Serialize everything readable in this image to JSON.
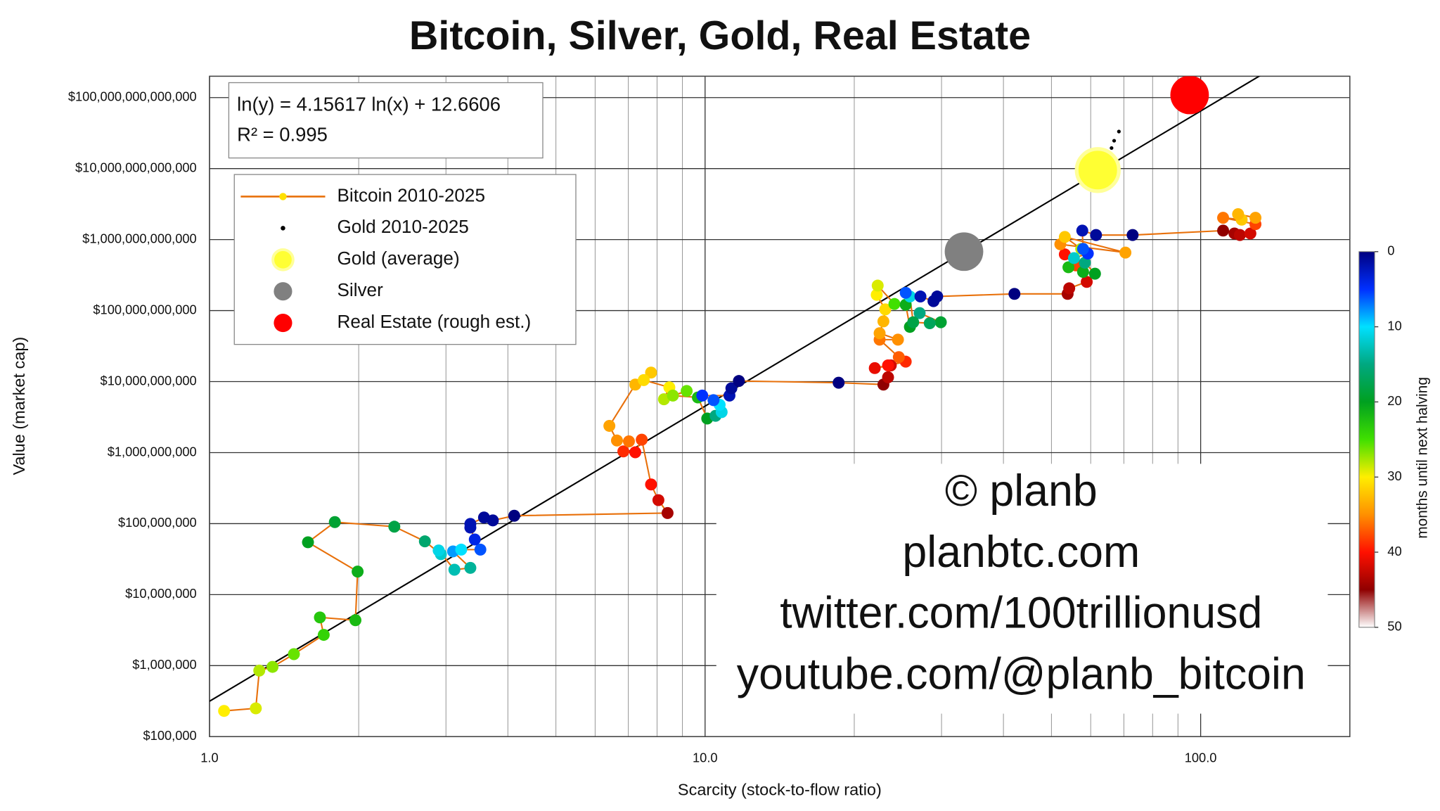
{
  "chart_data": {
    "type": "scatter",
    "title": "Bitcoin, Silver, Gold, Real Estate",
    "x_label": "Scarcity (stock-to-flow ratio)",
    "y_label": "Value (market cap)",
    "xlog": true,
    "ylog": true,
    "grid": true,
    "xlim": [
      1,
      200
    ],
    "ylim": [
      100000,
      200000000000000.0
    ],
    "xticks": [
      {
        "value": 1,
        "label": "1.0"
      },
      {
        "value": 10,
        "label": "10.0"
      },
      {
        "value": 100,
        "label": "100.0"
      }
    ],
    "xminorticks": [
      2,
      3,
      4,
      5,
      6,
      7,
      8,
      9,
      20,
      30,
      40,
      50,
      60,
      70,
      80,
      90
    ],
    "yticks": [
      {
        "value": 100000,
        "label": "$100,000"
      },
      {
        "value": 1000000,
        "label": "$1,000,000"
      },
      {
        "value": 10000000,
        "label": "$10,000,000"
      },
      {
        "value": 100000000,
        "label": "$100,000,000"
      },
      {
        "value": 1000000000,
        "label": "$1,000,000,000"
      },
      {
        "value": 10000000000,
        "label": "$10,000,000,000"
      },
      {
        "value": 100000000000,
        "label": "$100,000,000,000"
      },
      {
        "value": 1000000000000,
        "label": "$1,000,000,000,000"
      },
      {
        "value": 10000000000000,
        "label": "$10,000,000,000,000"
      },
      {
        "value": 100000000000000,
        "label": "$100,000,000,000,000"
      }
    ],
    "fit": {
      "equation": "ln(y) = 4.15617 ln(x) + 12.6606",
      "r2": "R² = 0.995",
      "slope": 4.15617,
      "intercept": 12.6606,
      "color": "#000000"
    },
    "colorbar": {
      "label": "months until next halving",
      "lim": [
        0,
        50
      ],
      "ticks": [
        0,
        10,
        20,
        30,
        40,
        50
      ],
      "colors": [
        "#000080",
        "#0030ff",
        "#00e0ff",
        "#00a880",
        "#00a020",
        "#40e000",
        "#ffee00",
        "#ff9000",
        "#ff1000",
        "#900000",
        "#ffffff"
      ]
    },
    "series": [
      {
        "name": "Bitcoin 2010-2025",
        "color": "#e8700a",
        "marker_color": "#ffe000",
        "x": [
          1.07,
          1.24,
          1.26,
          1.34,
          1.48,
          1.7,
          1.67,
          1.97,
          1.99,
          1.58,
          1.79,
          2.36,
          2.72,
          2.93,
          2.9,
          3.12,
          3.36,
          3.1,
          3.22,
          3.52,
          3.43,
          3.36,
          3.36,
          3.58,
          3.73,
          4.12,
          8.4,
          8.05,
          7.78,
          7.45,
          7.23,
          6.84,
          7.02,
          6.64,
          6.41,
          7.23,
          7.78,
          7.52,
          8.47,
          8.26,
          9.18,
          8.61,
          9.67,
          10.1,
          10.5,
          10.8,
          10.7,
          10.4,
          9.87,
          11.2,
          11.3,
          11.7,
          18.6,
          22.9,
          23.4,
          23.7,
          22.0,
          23.4,
          25.4,
          24.6,
          22.5,
          24.5,
          22.5,
          22.9,
          23.1,
          22.2,
          22.3,
          24.1,
          25.4,
          25.9,
          27.1,
          29.9,
          28.4,
          26.3,
          25.9,
          25.4,
          27.2,
          28.9,
          29.4,
          42.1,
          53.9,
          54.3,
          58.9,
          53.2,
          56.0,
          52.1,
          70.5,
          53.2,
          57.4,
          54.1,
          57.9,
          61.2,
          58.4,
          55.5,
          59.2,
          57.9,
          57.7,
          61.5,
          72.9,
          111,
          117,
          120,
          126,
          129,
          111,
          121,
          119,
          129
        ],
        "values": [
          230000,
          250000,
          850000,
          960000,
          1450000,
          2710000,
          4770000,
          4360000,
          21100000,
          54600000,
          105000000,
          90500000,
          56200000,
          37100000,
          41800000,
          22400000,
          23800000,
          40600000,
          43000000,
          43000000,
          59700000,
          87900000,
          98900000,
          122000000,
          111000000,
          129000000,
          141000000,
          214000000,
          356000000,
          1520000000,
          1010000000,
          1040000000,
          1440000000,
          1480000000,
          2380000000,
          9080000000,
          13400000000,
          10500000000,
          8300000000,
          5640000000,
          7380000000,
          6360000000,
          5980000000,
          3020000000,
          3300000000,
          3720000000,
          4720000000,
          5480000000,
          6360000000,
          6360000000,
          8050000000,
          10200000000,
          9640000000,
          9080000000,
          11500000000,
          16900000000,
          15500000000,
          16900000000,
          19100000000,
          22100000000,
          39000000000,
          39000000000,
          48000000000,
          70600000000,
          104000000000,
          167000000000,
          225000000000,
          124000000000,
          121000000000,
          59000000000,
          92300000000,
          68500000000,
          66500000000,
          68500000000,
          158000000000,
          178000000000,
          158000000000,
          136000000000,
          158000000000,
          172000000000,
          172000000000,
          206000000000,
          254000000000,
          619000000000,
          434000000000,
          859000000000,
          656000000000,
          1090000000000,
          740000000000,
          408000000000,
          351000000000,
          331000000000,
          473000000000,
          549000000000,
          636000000000,
          740000000000,
          1340000000000,
          1160000000000,
          1160000000000,
          1340000000000,
          1220000000000,
          1160000000000,
          1220000000000,
          1650000000000,
          2030000000000,
          1910000000000,
          2280000000000,
          2030000000000
        ],
        "months": [
          30,
          29,
          28,
          27,
          26,
          24,
          23,
          22,
          21,
          20,
          19,
          18,
          16,
          12,
          11,
          13,
          14,
          8,
          10,
          6,
          4,
          2,
          2,
          1,
          1,
          0,
          44,
          42,
          40,
          38,
          40,
          39,
          36,
          35,
          34,
          33,
          32,
          31,
          30,
          28,
          26,
          27,
          22,
          20,
          15,
          11,
          10,
          6,
          5,
          2,
          1,
          0,
          0,
          45,
          43,
          42,
          41,
          40,
          39,
          37,
          36,
          35,
          34,
          33,
          31,
          30,
          29,
          25,
          21,
          20,
          15,
          19,
          17,
          18,
          11,
          6,
          2,
          1,
          1,
          0,
          44,
          43,
          42,
          40,
          38,
          35,
          34,
          32,
          28,
          22,
          21,
          20,
          15,
          12,
          5,
          6,
          2,
          1,
          0,
          45,
          44,
          43,
          42,
          38,
          36,
          32,
          33,
          34
        ]
      },
      {
        "name": "Gold 2010-2025",
        "color": "#000000",
        "x": [
          68.4,
          66.9,
          66.1,
          65.3,
          62.0,
          60.4,
          59.2,
          58.7,
          62.0,
          63.4,
          59.9,
          59.9
        ],
        "values": [
          33300000000000,
          24700000000000,
          19500000000000,
          15400000000000,
          13200000000000,
          12500000000000,
          10800000000000,
          8770000000000,
          7340000000000,
          8490000000000,
          9020000000000,
          9870000000000
        ]
      },
      {
        "name": "Gold (average)",
        "color": "#ffff33",
        "x": [
          62.0
        ],
        "values": [
          9530000000000
        ]
      },
      {
        "name": "Silver",
        "color": "#808080",
        "x": [
          33.3
        ],
        "values": [
          677000000000
        ]
      },
      {
        "name": "Real Estate (rough est.)",
        "color": "#ff0000",
        "x": [
          95.0
        ],
        "values": [
          109000000000000
        ]
      }
    ],
    "watermark": [
      "© planb",
      "planbtc.com",
      "twitter.com/100trillionusd",
      "youtube.com/@planb_bitcoin"
    ]
  }
}
